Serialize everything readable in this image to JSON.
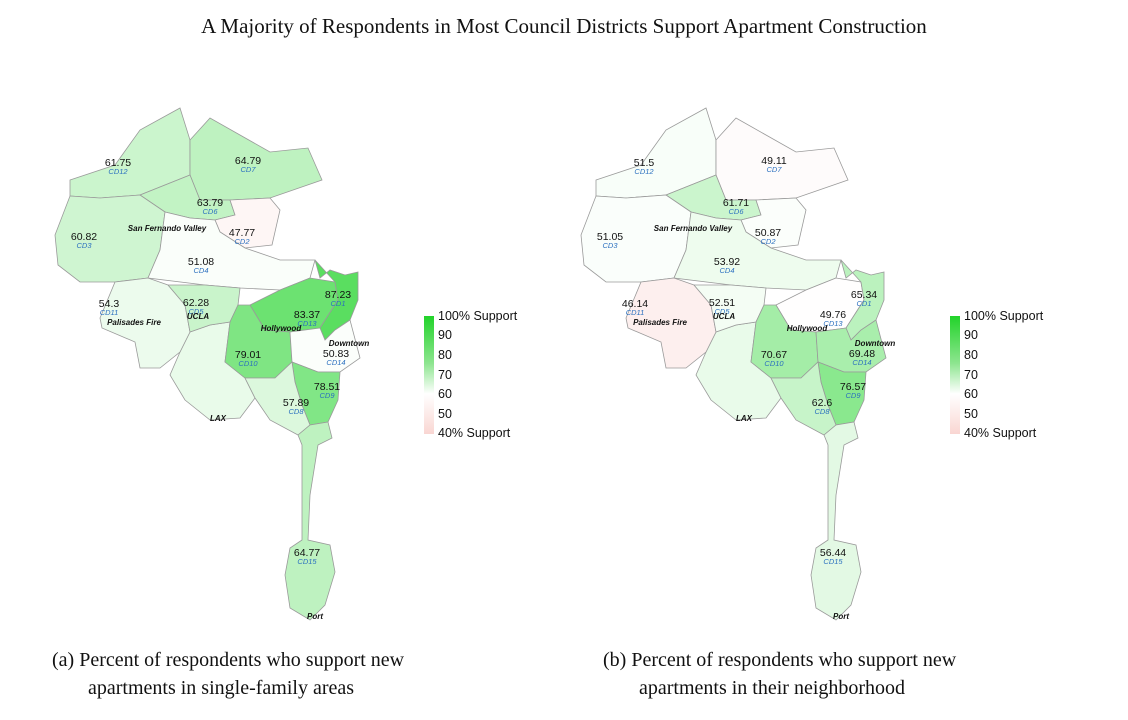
{
  "title": "A Majority of Respondents in Most Council Districts Support Apartment Construction",
  "legend": {
    "labels": [
      "100% Support",
      "90",
      "80",
      "70",
      "60",
      "50",
      "40% Support"
    ],
    "colors": {
      "high": "#22d32a",
      "mid": "#ffffff",
      "low": "#f9d6d2"
    }
  },
  "places": {
    "san_fernando_valley": "San Fernando Valley",
    "palisades_fire": "Palisades Fire",
    "ucla": "UCLA",
    "hollywood": "Hollywood",
    "downtown": "Downtown",
    "lax": "LAX",
    "port": "Port"
  },
  "maps": [
    {
      "caption_line1": "(a) Percent of respondents who support new",
      "caption_line2": "apartments in single-family areas",
      "districts": {
        "CD1": "87.23",
        "CD2": "47.77",
        "CD3": "60.82",
        "CD4": "51.08",
        "CD5": "62.28",
        "CD6": "63.79",
        "CD7": "64.79",
        "CD8": "57.89",
        "CD9": "78.51",
        "CD10": "79.01",
        "CD11": "54.3",
        "CD12": "61.75",
        "CD13": "83.37",
        "CD14": "50.83",
        "CD15": "64.77"
      }
    },
    {
      "caption_line1": "(b) Percent of respondents who support new",
      "caption_line2": "apartments in their neighborhood",
      "districts": {
        "CD1": "65.34",
        "CD2": "50.87",
        "CD3": "51.05",
        "CD4": "53.92",
        "CD5": "52.51",
        "CD6": "61.71",
        "CD7": "49.11",
        "CD8": "62.6",
        "CD9": "76.57",
        "CD10": "70.67",
        "CD11": "46.14",
        "CD12": "51.5",
        "CD13": "49.76",
        "CD14": "69.48",
        "CD15": "56.44"
      }
    }
  ]
}
